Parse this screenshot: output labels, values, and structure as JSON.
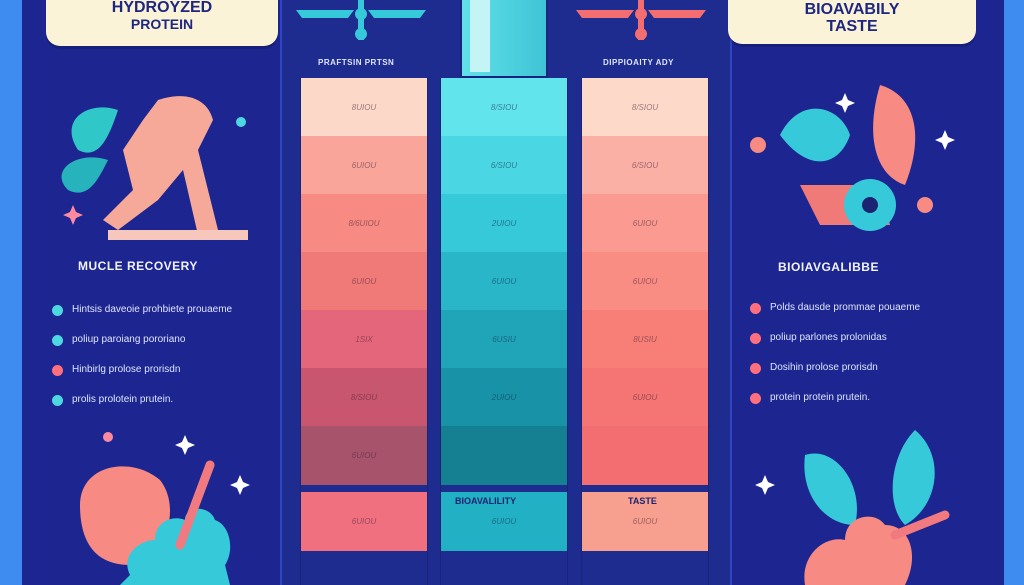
{
  "left_panel": {
    "title_line1": "HYDROYZED",
    "title_line2": "PROTEIN",
    "section": "MUCLE RECOVERY",
    "bullets": [
      {
        "text": "Hintsis daveoie prohbiete prouaeme",
        "color": "#4dd7e0"
      },
      {
        "text": "poliup paroiang pororiano",
        "color": "#4dd7e0"
      },
      {
        "text": "Hinbirlg prolose prorisdn",
        "color": "#ff6f7d"
      },
      {
        "text": "prolis prolotein prutein.",
        "color": "#4dd7e0"
      }
    ]
  },
  "right_panel": {
    "title_line1": "BIOAVABILY",
    "title_line2": "TASTE",
    "section": "BIOIAVGALIBBE",
    "bullets": [
      {
        "text": "Polds dausde prommae pouaeme",
        "color": "#ff6f7d"
      },
      {
        "text": "poliup parlones prolonidas",
        "color": "#ff6f7d"
      },
      {
        "text": "Dosihin prolose prorisdn",
        "color": "#ff6f7d"
      },
      {
        "text": "protein protein prutein.",
        "color": "#ff6f7d"
      }
    ]
  },
  "columns": {
    "labels": [
      "PRAFTSIN PRTSN",
      "DIPPIOAITY ADY"
    ],
    "inner_labels": [
      "BIOAVALILITY",
      "TASTE"
    ],
    "col1_segments": [
      "8UIOU",
      "6UIOU",
      "8/6UIOU",
      "6UIOU",
      "1SIX",
      "8/SIOU",
      "6UIOU",
      "6UIOU"
    ],
    "col2_segments": [
      "8/SIOU",
      "6/SIOU",
      "2UIOU",
      "6UIOU",
      "6USIU",
      "2UIOU",
      "",
      "6UIOU"
    ],
    "col3_segments": [
      "8/SIOU",
      "6/SIOU",
      "6UIOU",
      "6UIOU",
      "8USIU",
      "6UIOU",
      "",
      "6UIOU"
    ],
    "col1_colors": [
      "#fbd8c8",
      "#f9a59a",
      "#f78a82",
      "#f07a78",
      "#e4667a",
      "#c8566f",
      "#a7536c",
      "#f07080"
    ],
    "col2_colors": [
      "#62e4ec",
      "#4ad7e3",
      "#36c9da",
      "#28b6c8",
      "#1fa4b8",
      "#1892a6",
      "#148092",
      "#22b0c4"
    ],
    "col3_colors": [
      "#fcd9c9",
      "#fbb0a5",
      "#fa9a90",
      "#f98c83",
      "#f77f77",
      "#f57574",
      "#f36e70",
      "#f8a08f"
    ]
  }
}
